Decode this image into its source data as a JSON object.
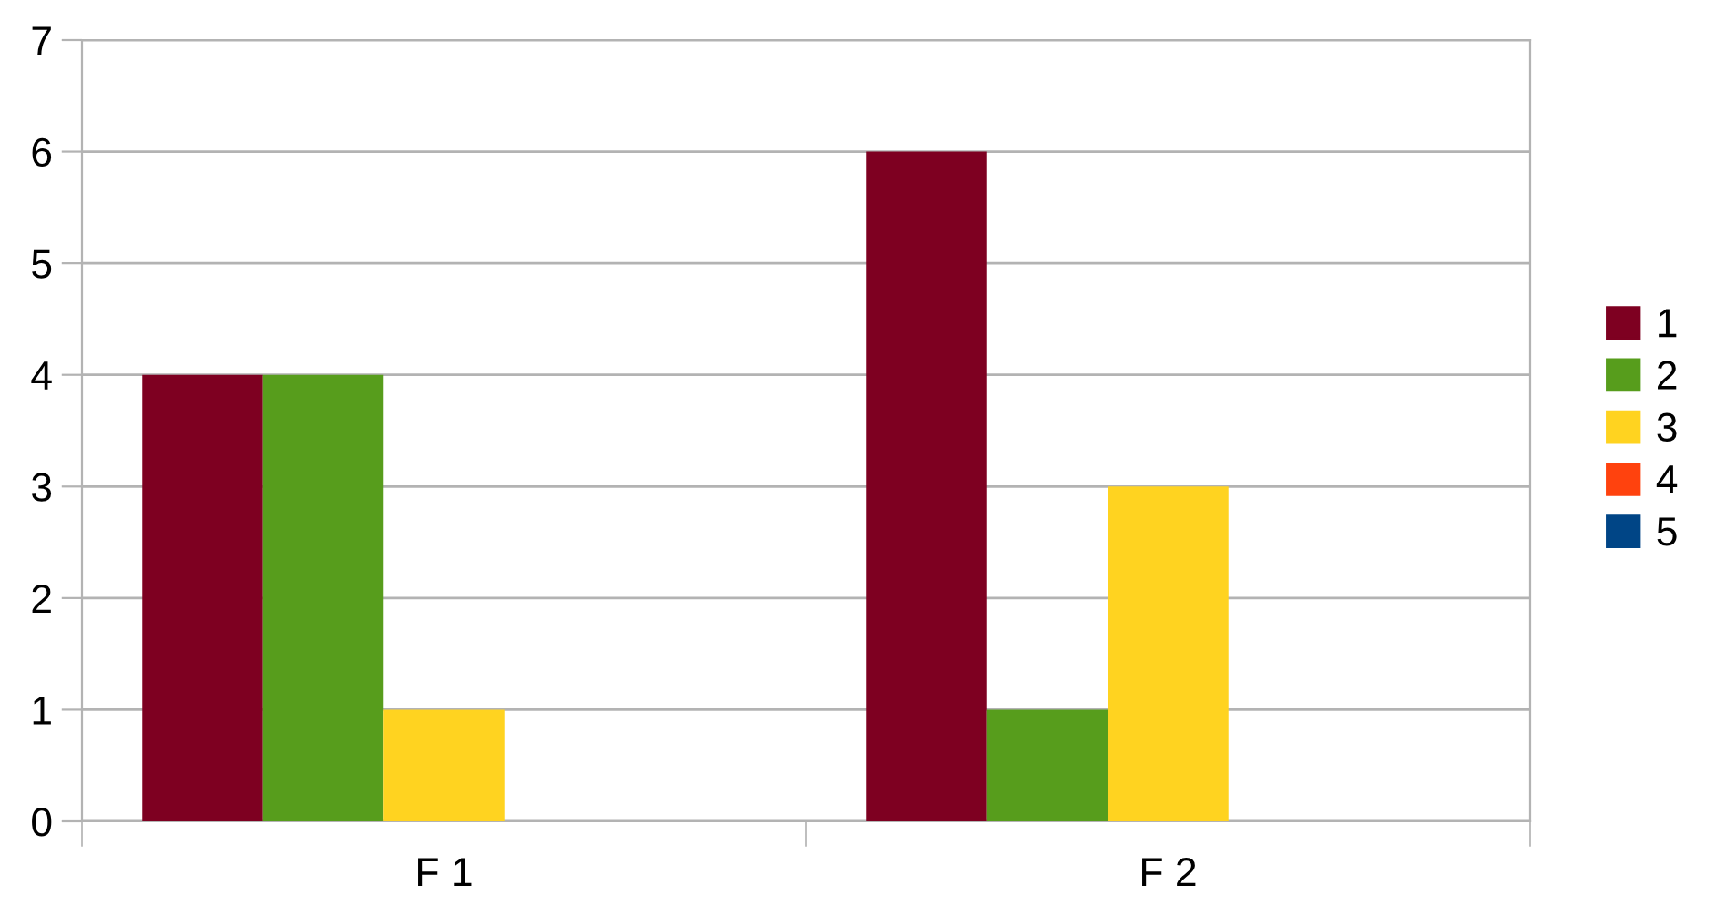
{
  "chart_data": {
    "type": "bar",
    "categories": [
      "F 1",
      "F 2"
    ],
    "series": [
      {
        "name": "1",
        "color": "#7e0021",
        "values": [
          4,
          6
        ]
      },
      {
        "name": "2",
        "color": "#579d1c",
        "values": [
          4,
          1
        ]
      },
      {
        "name": "3",
        "color": "#ffd320",
        "values": [
          1,
          3
        ]
      },
      {
        "name": "4",
        "color": "#ff420e",
        "values": [
          0,
          0
        ]
      },
      {
        "name": "5",
        "color": "#004586",
        "values": [
          0,
          0
        ]
      }
    ],
    "ylim": [
      0,
      7
    ],
    "yticks": [
      0,
      1,
      2,
      3,
      4,
      5,
      6,
      7
    ],
    "grid": "y",
    "legend": "right"
  }
}
